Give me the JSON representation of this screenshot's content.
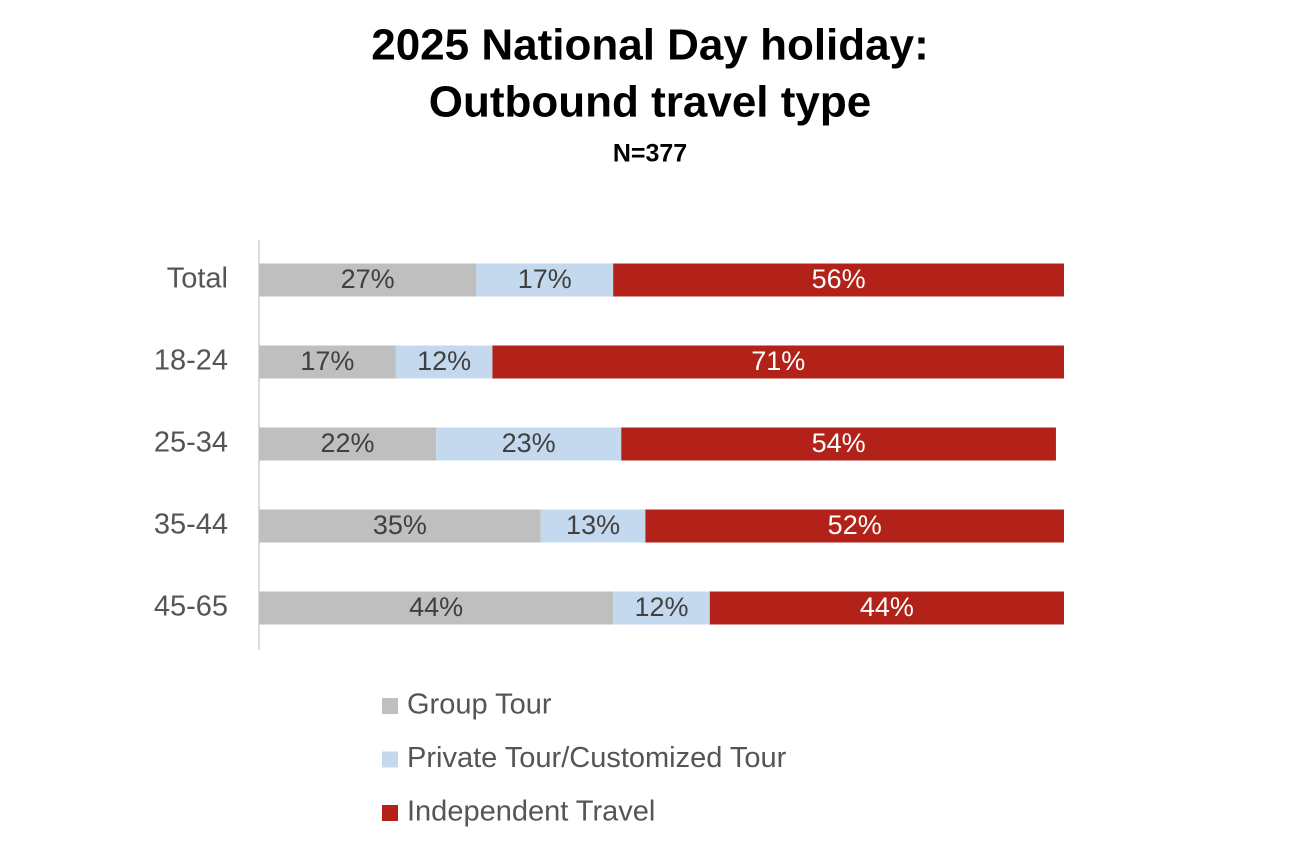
{
  "chart_data": {
    "type": "stacked-barh",
    "title": [
      "2025 National Day holiday:",
      "Outbound travel type"
    ],
    "subtitle": "N=377",
    "categories": [
      "Total",
      "18-24",
      "25-34",
      "35-44",
      "45-65"
    ],
    "xlim": [
      0,
      100
    ],
    "legend": "bottom",
    "series": [
      {
        "name": "Group Tour",
        "color": "#bfbfbf",
        "label_color": "#404040",
        "values": [
          27,
          17,
          22,
          35,
          44
        ],
        "value_labels": [
          "27%",
          "17%",
          "22%",
          "35%",
          "44%"
        ]
      },
      {
        "name": "Private Tour/Customized Tour",
        "color": "#c5d9ee",
        "label_color": "#404040",
        "values": [
          17,
          12,
          23,
          13,
          12
        ],
        "value_labels": [
          "17%",
          "12%",
          "23%",
          "13%",
          "12%"
        ]
      },
      {
        "name": "Independent Travel",
        "color": "#b22218",
        "label_color": "#ffffff",
        "values": [
          56,
          71,
          54,
          52,
          44
        ],
        "value_labels": [
          "56%",
          "71%",
          "54%",
          "52%",
          "44%"
        ]
      }
    ]
  }
}
